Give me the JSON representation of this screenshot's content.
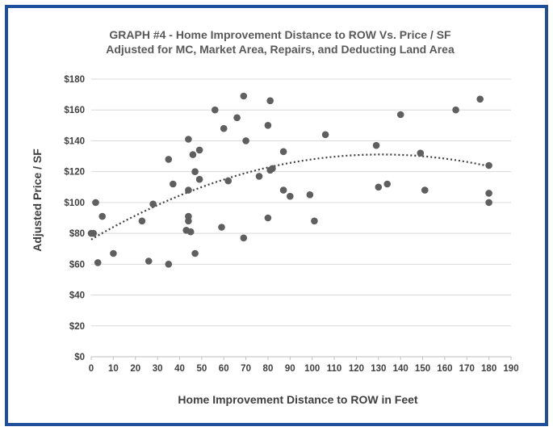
{
  "chart_data": {
    "type": "scatter",
    "title": "GRAPH #4 - Home Improvement Distance to ROW Vs. Price / SF",
    "subtitle": "Adjusted for MC, Market Area, Repairs, and Deducting Land Area",
    "xlabel": "Home Improvement Distance to ROW in Feet",
    "ylabel": "Adjusted Price / SF",
    "xlim": [
      0,
      190
    ],
    "ylim": [
      0,
      180
    ],
    "x_ticks": [
      0,
      10,
      20,
      30,
      40,
      50,
      60,
      70,
      80,
      90,
      100,
      110,
      120,
      130,
      140,
      150,
      160,
      170,
      180,
      190
    ],
    "y_ticks": [
      0,
      20,
      40,
      60,
      80,
      100,
      120,
      140,
      160,
      180
    ],
    "y_tick_labels": [
      "$0",
      "$20",
      "$40",
      "$60",
      "$80",
      "$100",
      "$120",
      "$140",
      "$160",
      "$180"
    ],
    "grid": "horizontal",
    "points": [
      {
        "x": 0,
        "y": 80
      },
      {
        "x": 1,
        "y": 80
      },
      {
        "x": 2,
        "y": 100
      },
      {
        "x": 3,
        "y": 61
      },
      {
        "x": 5,
        "y": 91
      },
      {
        "x": 10,
        "y": 67
      },
      {
        "x": 23,
        "y": 88
      },
      {
        "x": 26,
        "y": 62
      },
      {
        "x": 28,
        "y": 99
      },
      {
        "x": 35,
        "y": 128
      },
      {
        "x": 35,
        "y": 60
      },
      {
        "x": 37,
        "y": 112
      },
      {
        "x": 43,
        "y": 82
      },
      {
        "x": 44,
        "y": 141
      },
      {
        "x": 44,
        "y": 108
      },
      {
        "x": 44,
        "y": 91
      },
      {
        "x": 44,
        "y": 88
      },
      {
        "x": 45,
        "y": 81
      },
      {
        "x": 46,
        "y": 131
      },
      {
        "x": 47,
        "y": 120
      },
      {
        "x": 47,
        "y": 67
      },
      {
        "x": 49,
        "y": 134
      },
      {
        "x": 49,
        "y": 115
      },
      {
        "x": 56,
        "y": 160
      },
      {
        "x": 59,
        "y": 84
      },
      {
        "x": 60,
        "y": 148
      },
      {
        "x": 62,
        "y": 114
      },
      {
        "x": 66,
        "y": 155
      },
      {
        "x": 69,
        "y": 169
      },
      {
        "x": 69,
        "y": 77
      },
      {
        "x": 70,
        "y": 140
      },
      {
        "x": 76,
        "y": 117
      },
      {
        "x": 80,
        "y": 150
      },
      {
        "x": 80,
        "y": 90
      },
      {
        "x": 81,
        "y": 166
      },
      {
        "x": 81,
        "y": 121
      },
      {
        "x": 82,
        "y": 122
      },
      {
        "x": 87,
        "y": 133
      },
      {
        "x": 87,
        "y": 108
      },
      {
        "x": 90,
        "y": 104
      },
      {
        "x": 99,
        "y": 105
      },
      {
        "x": 101,
        "y": 88
      },
      {
        "x": 106,
        "y": 144
      },
      {
        "x": 129,
        "y": 137
      },
      {
        "x": 130,
        "y": 110
      },
      {
        "x": 134,
        "y": 112
      },
      {
        "x": 140,
        "y": 157
      },
      {
        "x": 149,
        "y": 132
      },
      {
        "x": 151,
        "y": 108
      },
      {
        "x": 165,
        "y": 160
      },
      {
        "x": 176,
        "y": 167
      },
      {
        "x": 180,
        "y": 124
      },
      {
        "x": 180,
        "y": 106
      },
      {
        "x": 180,
        "y": 100
      }
    ],
    "trendline": {
      "type": "polynomial",
      "order": 2,
      "coefficients": [
        76,
        0.84,
        -0.0032
      ],
      "x_range": [
        0,
        180
      ]
    }
  }
}
